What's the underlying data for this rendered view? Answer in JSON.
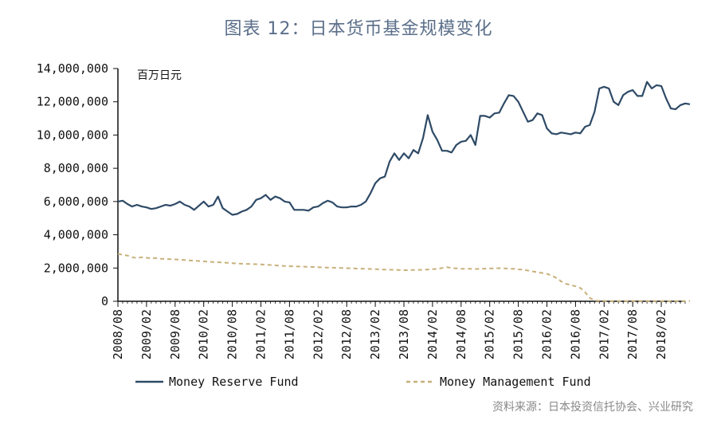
{
  "title": "图表 12：日本货币基金规模变化",
  "source": "资料来源：日本投资信托协会、兴业研究",
  "colors": {
    "mrf": "#2e4a66",
    "mmf": "#c8b07a",
    "axis": "#111111"
  },
  "chart_data": {
    "type": "line",
    "unit_label": "百万日元",
    "ylim": [
      0,
      14000000
    ],
    "yticks": [
      0,
      2000000,
      4000000,
      6000000,
      8000000,
      10000000,
      12000000,
      14000000
    ],
    "ytick_labels": [
      "0",
      "2,000,000",
      "4,000,000",
      "6,000,000",
      "8,000,000",
      "10,000,000",
      "12,000,000",
      "14,000,000"
    ],
    "xtick_labels": [
      "2008/08",
      "2009/02",
      "2009/08",
      "2010/02",
      "2010/08",
      "2011/02",
      "2011/08",
      "2012/02",
      "2012/08",
      "2013/02",
      "2013/08",
      "2014/02",
      "2014/08",
      "2015/02",
      "2015/08",
      "2016/02",
      "2016/08",
      "2017/02",
      "2017/08",
      "2018/02"
    ],
    "x_start": "2008/08",
    "x_end": "2018/07",
    "legend": [
      "Money Reserve Fund",
      "Money Management Fund"
    ],
    "series": [
      {
        "name": "Money Reserve Fund",
        "style": "solid",
        "values": [
          6000000,
          6050000,
          5850000,
          5700000,
          5800000,
          5700000,
          5650000,
          5550000,
          5600000,
          5700000,
          5800000,
          5750000,
          5850000,
          6000000,
          5800000,
          5700000,
          5500000,
          5750000,
          6000000,
          5700000,
          5800000,
          6300000,
          5600000,
          5400000,
          5200000,
          5250000,
          5400000,
          5500000,
          5700000,
          6100000,
          6200000,
          6400000,
          6100000,
          6300000,
          6200000,
          6000000,
          5950000,
          5500000,
          5500000,
          5500000,
          5450000,
          5650000,
          5700000,
          5900000,
          6050000,
          5950000,
          5700000,
          5650000,
          5650000,
          5700000,
          5700000,
          5800000,
          6000000,
          6500000,
          7100000,
          7400000,
          7500000,
          8400000,
          8900000,
          8500000,
          8900000,
          8600000,
          9100000,
          8900000,
          9800000,
          11200000,
          10200000,
          9700000,
          9050000,
          9050000,
          8950000,
          9400000,
          9600000,
          9650000,
          10000000,
          9400000,
          11150000,
          11150000,
          11050000,
          11300000,
          11350000,
          11900000,
          12400000,
          12350000,
          12000000,
          11400000,
          10800000,
          10900000,
          11300000,
          11200000,
          10400000,
          10100000,
          10050000,
          10150000,
          10100000,
          10050000,
          10150000,
          10100000,
          10500000,
          10600000,
          11400000,
          12800000,
          12900000,
          12800000,
          12000000,
          11800000,
          12400000,
          12600000,
          12700000,
          12350000,
          12350000,
          13200000,
          12800000,
          13000000,
          12950000,
          12200000,
          11600000,
          11550000,
          11800000,
          11900000,
          11850000
        ]
      },
      {
        "name": "Money Management Fund",
        "style": "dashed",
        "values": [
          2850000,
          2800000,
          2750000,
          2650000,
          2600000,
          2650000,
          2620000,
          2580000,
          2600000,
          2550000,
          2550000,
          2530000,
          2520000,
          2500000,
          2480000,
          2460000,
          2440000,
          2420000,
          2400000,
          2380000,
          2360000,
          2350000,
          2330000,
          2310000,
          2290000,
          2270000,
          2260000,
          2250000,
          2240000,
          2230000,
          2220000,
          2200000,
          2180000,
          2160000,
          2140000,
          2120000,
          2110000,
          2100000,
          2090000,
          2080000,
          2070000,
          2060000,
          2050000,
          2040000,
          2030000,
          2020000,
          2010000,
          2000000,
          1990000,
          1980000,
          1970000,
          1960000,
          1950000,
          1940000,
          1930000,
          1920000,
          1910000,
          1900000,
          1890000,
          1880000,
          1870000,
          1870000,
          1880000,
          1890000,
          1900000,
          1910000,
          1930000,
          1950000,
          2000000,
          2050000,
          2000000,
          1980000,
          1960000,
          1950000,
          1950000,
          1940000,
          1950000,
          1960000,
          1970000,
          1980000,
          1990000,
          1980000,
          1960000,
          1950000,
          1920000,
          1900000,
          1850000,
          1800000,
          1750000,
          1700000,
          1650000,
          1550000,
          1400000,
          1200000,
          1050000,
          980000,
          900000,
          800000,
          550000,
          200000,
          50000,
          30000,
          20000,
          15000,
          12000,
          10000,
          10000,
          10000,
          10000,
          10000,
          10000,
          10000,
          10000,
          10000,
          10000,
          10000,
          10000,
          10000,
          10000,
          10000,
          10000
        ]
      }
    ]
  }
}
